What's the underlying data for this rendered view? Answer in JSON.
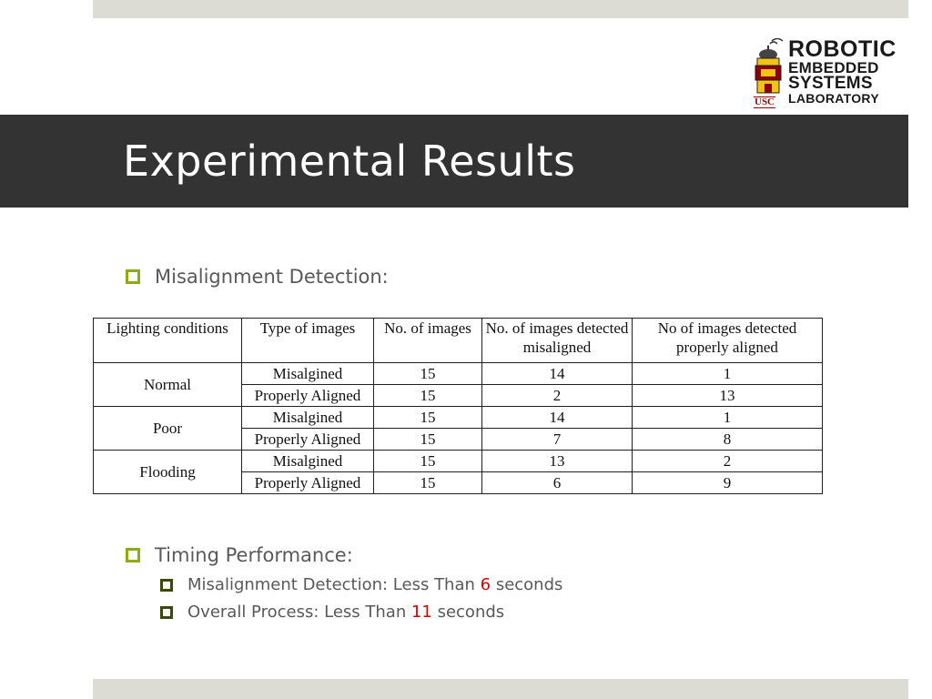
{
  "slide": {
    "title": "Experimental Results"
  },
  "logo": {
    "line1": "ROBOTIC",
    "line2": "EMBEDDED",
    "line3": "SYSTEMS",
    "line4": "LABORATORY",
    "badge": "USC"
  },
  "bullets": {
    "misalignment_detection": "Misalignment Detection:",
    "timing_performance": "Timing Performance:",
    "sub1": {
      "prefix": "Misalignment Detection: Less Than ",
      "value": "6",
      "suffix": " seconds"
    },
    "sub2": {
      "prefix": "Overall Process: Less Than ",
      "value": "11",
      "suffix": " seconds"
    }
  },
  "table": {
    "headers": [
      "Lighting conditions",
      "Type of images",
      "No. of images",
      "No. of images detected misaligned",
      "No of images detected properly aligned"
    ],
    "groups": [
      {
        "condition": "Normal",
        "rows": [
          {
            "type": "Misalgined",
            "count": "15",
            "misaligned": "14",
            "aligned": "1"
          },
          {
            "type": "Properly Aligned",
            "count": "15",
            "misaligned": "2",
            "aligned": "13"
          }
        ]
      },
      {
        "condition": "Poor",
        "rows": [
          {
            "type": "Misalgined",
            "count": "15",
            "misaligned": "14",
            "aligned": "1"
          },
          {
            "type": "Properly Aligned",
            "count": "15",
            "misaligned": "7",
            "aligned": "8"
          }
        ]
      },
      {
        "condition": "Flooding",
        "rows": [
          {
            "type": "Misalgined",
            "count": "15",
            "misaligned": "13",
            "aligned": "2"
          },
          {
            "type": "Properly Aligned",
            "count": "15",
            "misaligned": "6",
            "aligned": "9"
          }
        ]
      }
    ]
  },
  "colors": {
    "title_bar": "#333333",
    "bullet_accent": "#8aad14",
    "highlight": "#d40000",
    "band": "#dcdcd5"
  }
}
